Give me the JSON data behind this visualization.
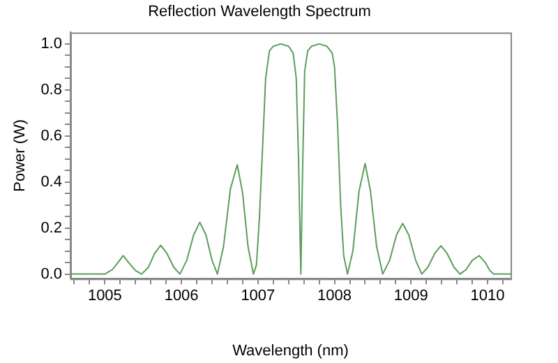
{
  "chart_data": {
    "type": "line",
    "title": "Reflection Wavelength Spectrum",
    "xlabel": "Wavelength (nm)",
    "ylabel": "Power (W)",
    "xlim": [
      1004.55,
      1010.3
    ],
    "ylim": [
      -0.02,
      1.05
    ],
    "xticks": [
      {
        "value": 1004.6,
        "label": null
      },
      {
        "value": 1004.8,
        "label": null
      },
      1005,
      {
        "value": 1005.2,
        "label": null
      },
      {
        "value": 1005.4,
        "label": null
      },
      {
        "value": 1005.6,
        "label": null
      },
      {
        "value": 1005.8,
        "label": null
      },
      1006,
      {
        "value": 1006.2,
        "label": null
      },
      {
        "value": 1006.4,
        "label": null
      },
      {
        "value": 1006.6,
        "label": null
      },
      {
        "value": 1006.8,
        "label": null
      },
      1007,
      {
        "value": 1007.2,
        "label": null
      },
      {
        "value": 1007.4,
        "label": null
      },
      {
        "value": 1007.6,
        "label": null
      },
      {
        "value": 1007.8,
        "label": null
      },
      1008,
      {
        "value": 1008.2,
        "label": null
      },
      {
        "value": 1008.4,
        "label": null
      },
      {
        "value": 1008.6,
        "label": null
      },
      {
        "value": 1008.8,
        "label": null
      },
      1009,
      {
        "value": 1009.2,
        "label": null
      },
      {
        "value": 1009.4,
        "label": null
      },
      {
        "value": 1009.6,
        "label": null
      },
      {
        "value": 1009.8,
        "label": null
      },
      1010,
      {
        "value": 1010.2,
        "label": null
      }
    ],
    "yticks": [
      {
        "value": 0,
        "label": "0.0"
      },
      {
        "value": 0.05,
        "label": null
      },
      {
        "value": 0.1,
        "label": null
      },
      {
        "value": 0.15,
        "label": null
      },
      {
        "value": 0.2,
        "label": "0.2"
      },
      {
        "value": 0.25,
        "label": null
      },
      {
        "value": 0.3,
        "label": null
      },
      {
        "value": 0.35,
        "label": null
      },
      {
        "value": 0.4,
        "label": "0.4"
      },
      {
        "value": 0.45,
        "label": null
      },
      {
        "value": 0.5,
        "label": null
      },
      {
        "value": 0.55,
        "label": null
      },
      {
        "value": 0.6,
        "label": "0.6"
      },
      {
        "value": 0.65,
        "label": null
      },
      {
        "value": 0.7,
        "label": null
      },
      {
        "value": 0.75,
        "label": null
      },
      {
        "value": 0.8,
        "label": "0.8"
      },
      {
        "value": 0.85,
        "label": null
      },
      {
        "value": 0.9,
        "label": null
      },
      {
        "value": 0.95,
        "label": null
      },
      {
        "value": 1.0,
        "label": "1.0"
      }
    ],
    "grid": false,
    "legend": false,
    "marker": "none",
    "line_style": "solid",
    "series": [
      {
        "color": "#5a9e5a",
        "x": [
          1004.55,
          1005.0,
          1005.1,
          1005.17,
          1005.24,
          1005.31,
          1005.4,
          1005.48,
          1005.57,
          1005.65,
          1005.73,
          1005.81,
          1005.9,
          1005.98,
          1006.07,
          1006.16,
          1006.24,
          1006.32,
          1006.4,
          1006.47,
          1006.55,
          1006.64,
          1006.73,
          1006.8,
          1006.87,
          1006.94,
          1006.98,
          1007.02,
          1007.06,
          1007.1,
          1007.15,
          1007.2,
          1007.3,
          1007.4,
          1007.46,
          1007.5,
          1007.53,
          1007.56,
          1007.58,
          1007.61,
          1007.65,
          1007.7,
          1007.8,
          1007.9,
          1007.97,
          1008.0,
          1008.04,
          1008.08,
          1008.12,
          1008.17,
          1008.24,
          1008.32,
          1008.4,
          1008.47,
          1008.55,
          1008.63,
          1008.72,
          1008.81,
          1008.89,
          1008.97,
          1009.06,
          1009.14,
          1009.22,
          1009.31,
          1009.39,
          1009.47,
          1009.56,
          1009.64,
          1009.72,
          1009.8,
          1009.89,
          1009.97,
          1010.03,
          1010.08,
          1010.3
        ],
        "values": [
          0,
          0,
          0.02,
          0.05,
          0.08,
          0.05,
          0.015,
          0,
          0.03,
          0.09,
          0.125,
          0.09,
          0.03,
          0,
          0.06,
          0.17,
          0.225,
          0.17,
          0.06,
          0,
          0.12,
          0.37,
          0.475,
          0.35,
          0.12,
          0,
          0.04,
          0.25,
          0.55,
          0.85,
          0.97,
          0.99,
          1.0,
          0.99,
          0.96,
          0.85,
          0.5,
          0,
          0.4,
          0.88,
          0.97,
          0.99,
          1.0,
          0.99,
          0.96,
          0.9,
          0.65,
          0.3,
          0.08,
          0,
          0.1,
          0.36,
          0.48,
          0.36,
          0.12,
          0,
          0.06,
          0.17,
          0.22,
          0.17,
          0.06,
          0,
          0.03,
          0.09,
          0.123,
          0.09,
          0.03,
          0,
          0.02,
          0.06,
          0.08,
          0.05,
          0.015,
          0,
          0
        ]
      }
    ]
  }
}
